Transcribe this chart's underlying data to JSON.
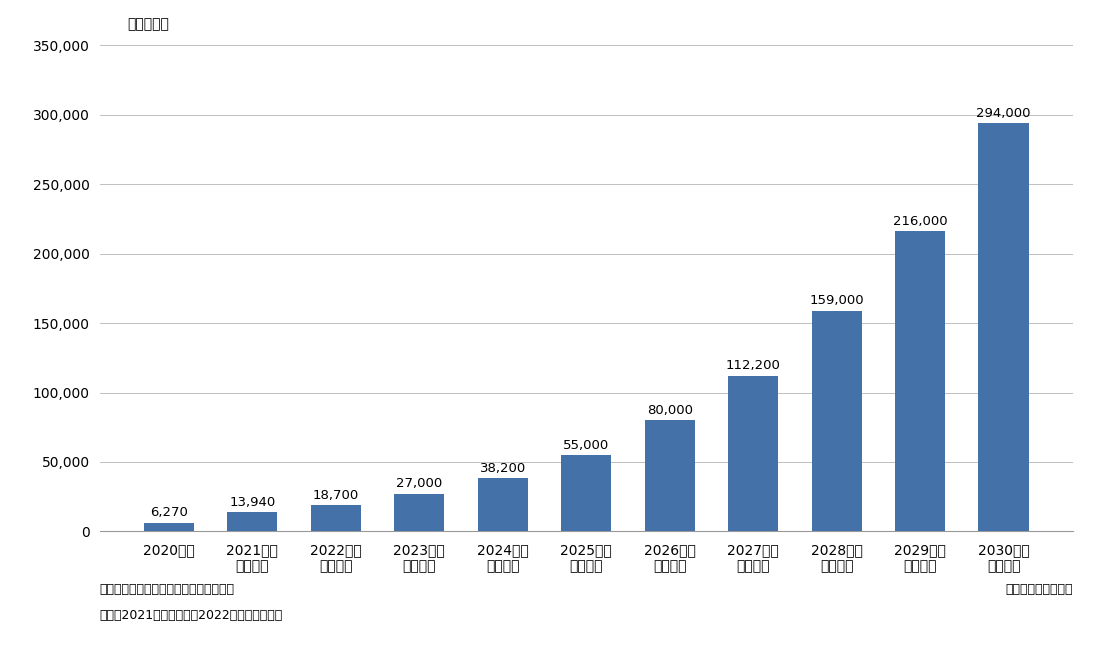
{
  "categories": [
    "2020年度",
    "2021年度\n（見込）",
    "2022年度\n（予測）",
    "2023年度\n（予測）",
    "2024年度\n（予測）",
    "2025年度\n（予測）",
    "2026年度\n（予測）",
    "2027年度\n（予測）",
    "2028年度\n（予測）",
    "2029年度\n（予測）",
    "2030年度\n（予測）"
  ],
  "values": [
    6270,
    13940,
    18700,
    27000,
    38200,
    55000,
    80000,
    112200,
    159000,
    216000,
    294000
  ],
  "bar_color": "#4472a8",
  "ylabel": "（百万円）",
  "ylim": [
    0,
    350000
  ],
  "yticks": [
    0,
    50000,
    100000,
    150000,
    200000,
    250000,
    300000,
    350000
  ],
  "note1": "注１．サービス提供事業者売上高ベース",
  "note2": "注２．2021年度見込値、2022年度以降予測値",
  "source": "矢野経済研究所調べ",
  "bar_value_labels": [
    "6,270",
    "13,940",
    "18,700",
    "27,000",
    "38,200",
    "55,000",
    "80,000",
    "112,200",
    "159,000",
    "216,000",
    "294,000"
  ],
  "background_color": "#ffffff",
  "grid_color": "#c0c0c0",
  "tick_fontsize": 10,
  "value_label_fontsize": 9.5,
  "note_fontsize": 9,
  "ylabel_fontsize": 10
}
